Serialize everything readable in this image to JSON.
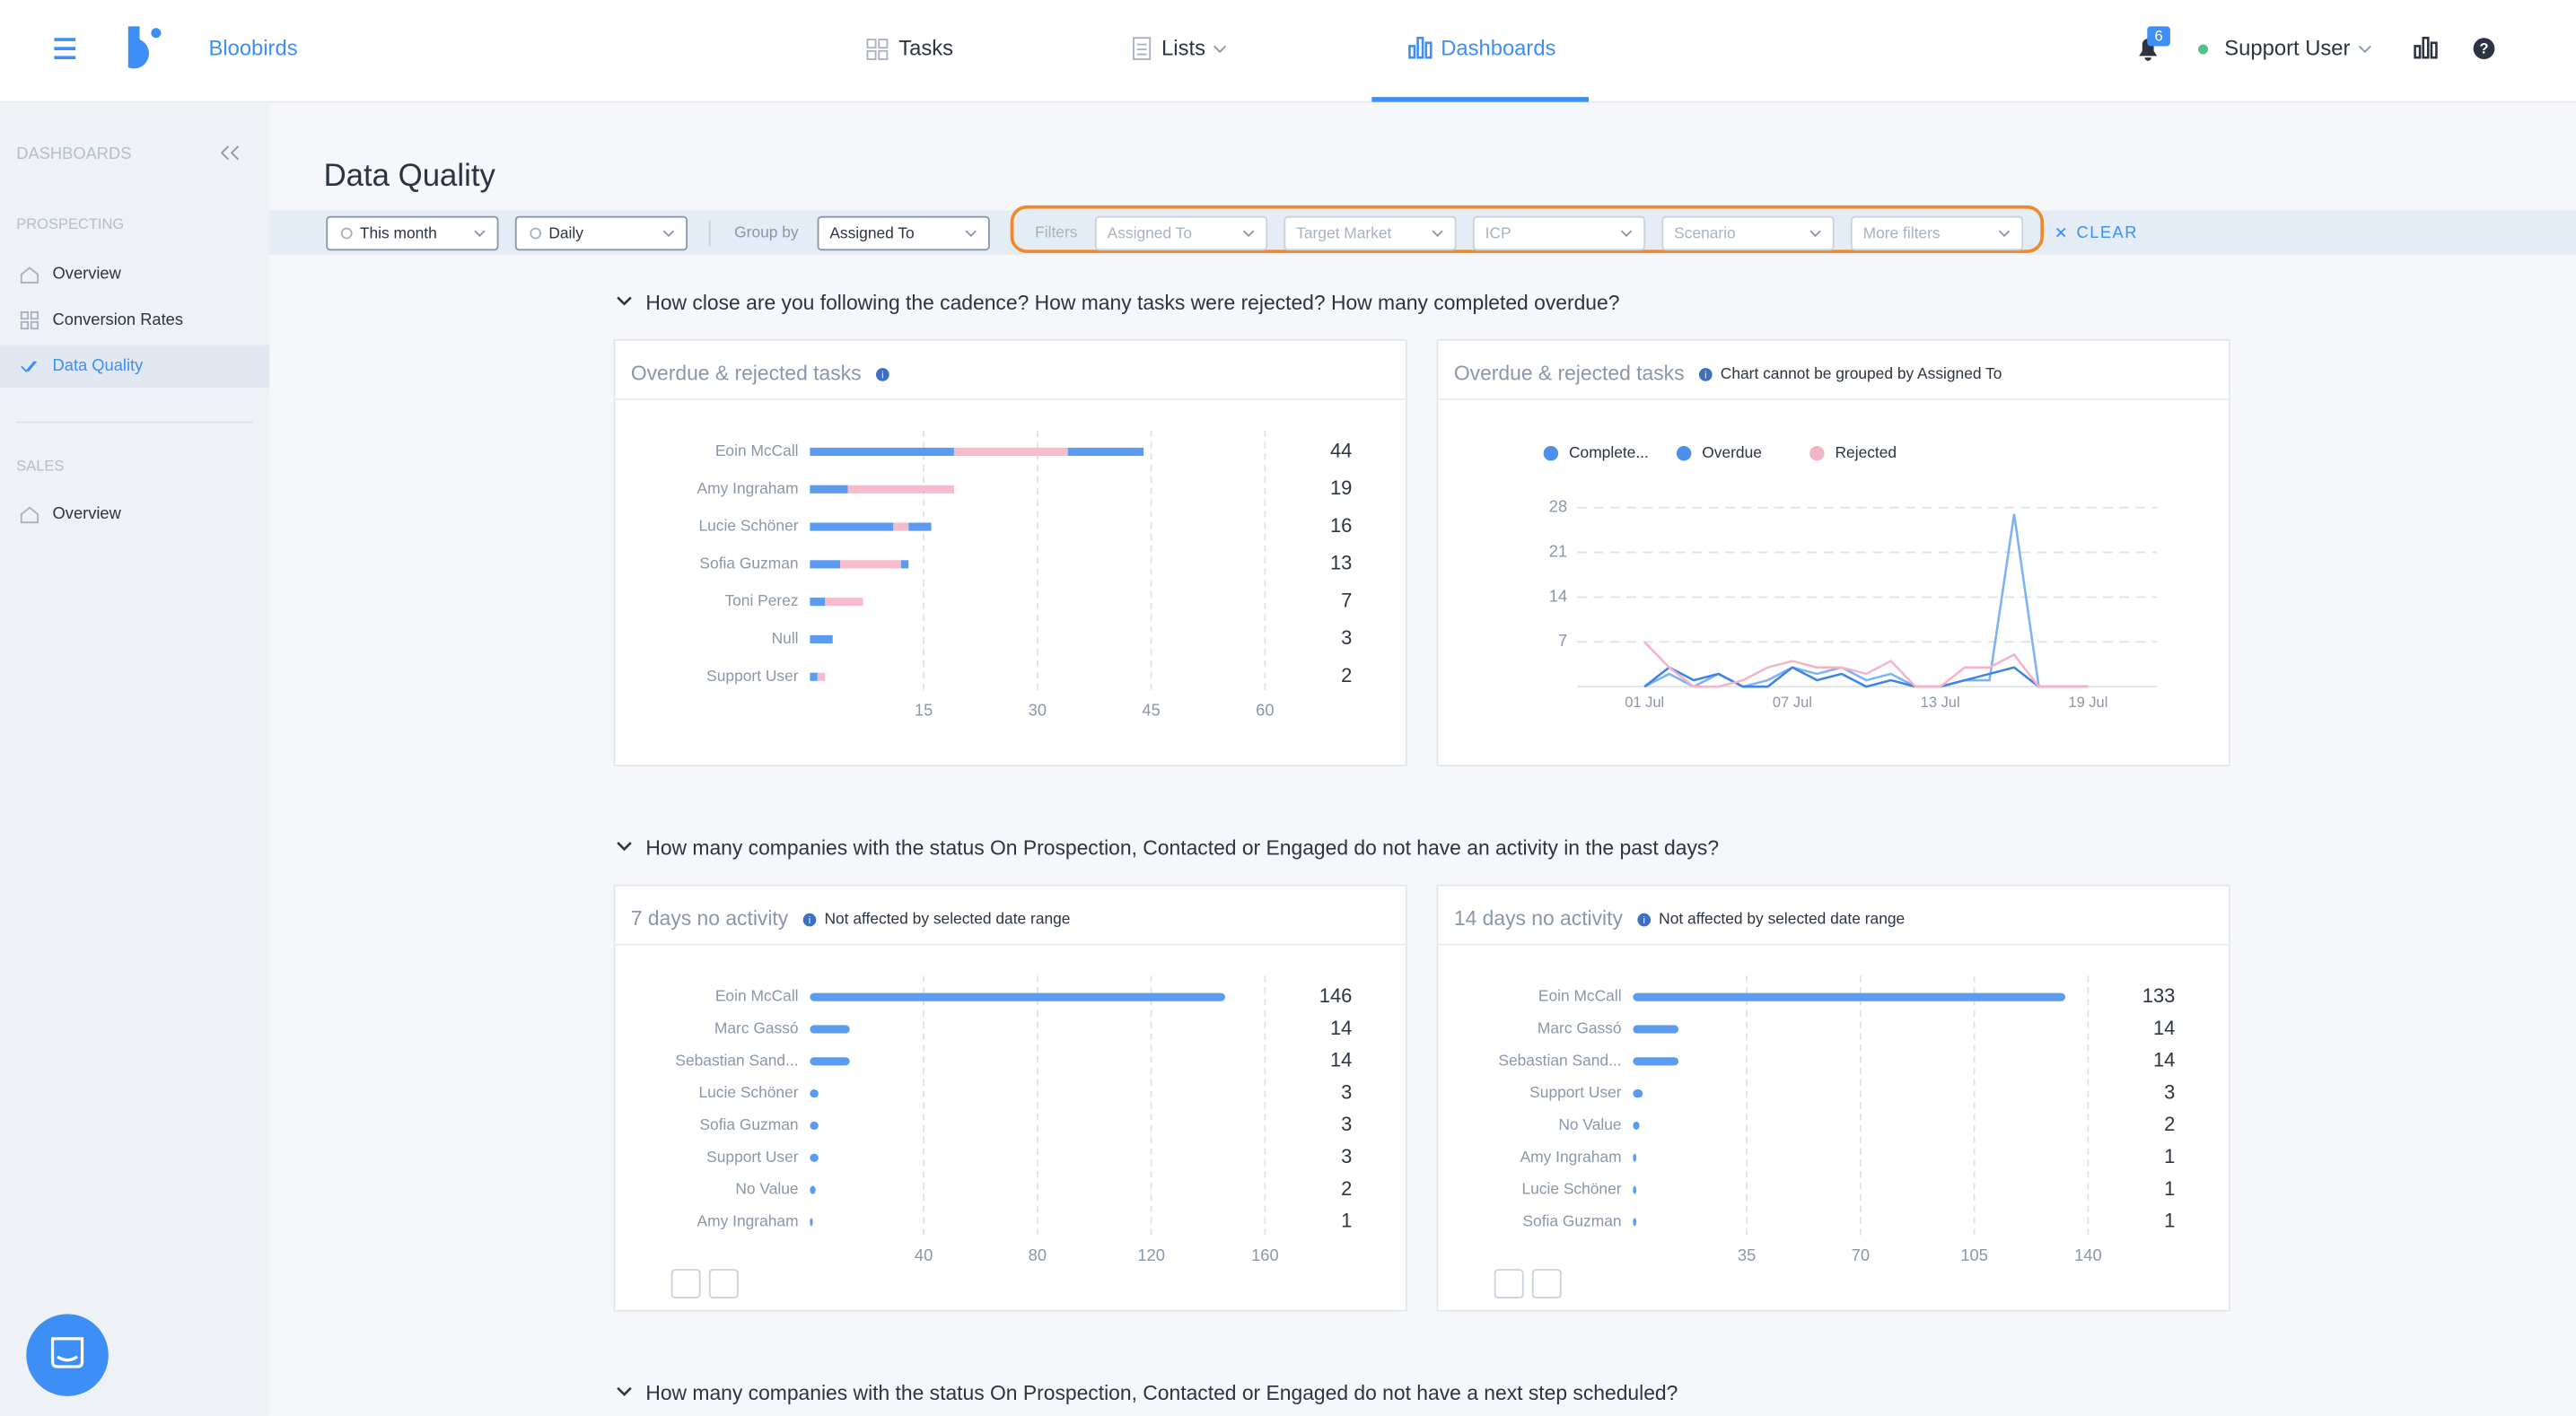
{
  "header": {
    "brand": "Bloobirds",
    "nav": [
      "Tasks",
      "Lists",
      "Dashboards"
    ],
    "notifications": 6,
    "user": "Support User"
  },
  "sidebar": {
    "title": "DASHBOARDS",
    "groups": [
      {
        "label": "PROSPECTING",
        "items": [
          "Overview",
          "Conversion Rates",
          "Data Quality"
        ]
      },
      {
        "label": "SALES",
        "items": [
          "Overview"
        ]
      }
    ]
  },
  "page": {
    "title": "Data Quality",
    "filters": {
      "date": "This month",
      "interval": "Daily",
      "group_label": "Group by",
      "group": "Assigned To",
      "filters_label": "Filters",
      "fields": [
        "Assigned To",
        "Target Market",
        "ICP",
        "Scenario",
        "More filters"
      ],
      "clear": "CLEAR"
    }
  },
  "sections": [
    {
      "question": "How close are you following the cadence? How many tasks were rejected? How many completed overdue?",
      "charts": [
        {
          "type": "stacked_hbar",
          "title": "Overdue & rejected tasks",
          "categories": [
            "Eoin McCall",
            "Amy Ingraham",
            "Lucie Schöner",
            "Sofia Guzman",
            "Toni Perez",
            "Null",
            "Support User"
          ],
          "series": [
            {
              "color": "#5b9cf0",
              "values": [
                19,
                5,
                11,
                4,
                2,
                3,
                1
              ]
            },
            {
              "color": "#f6bccb",
              "values": [
                15,
                14,
                2,
                8,
                5,
                0,
                1
              ]
            },
            {
              "color": "#5b9cf0",
              "values": [
                10,
                0,
                3,
                1,
                0,
                0,
                0
              ]
            }
          ],
          "totals": [
            44,
            19,
            16,
            13,
            7,
            3,
            2
          ],
          "xlim": [
            0,
            60
          ],
          "xticks": [
            15,
            30,
            45,
            60
          ]
        },
        {
          "type": "line",
          "title": "Overdue & rejected tasks",
          "note": "Chart cannot be grouped by Assigned To",
          "categories": [
            "01 Jul",
            null,
            null,
            null,
            null,
            null,
            "07 Jul",
            null,
            null,
            null,
            null,
            null,
            "13 Jul",
            null,
            null,
            null,
            null,
            null,
            "19 Jul"
          ],
          "series": [
            {
              "name": "Complete...",
              "color": "#7fb2f5",
              "values": [
                0,
                2,
                0,
                2,
                0,
                1,
                3,
                2,
                3,
                1,
                2,
                0,
                0,
                1,
                1,
                27,
                0,
                0,
                0
              ]
            },
            {
              "name": "Overdue",
              "color": "#3f83e6",
              "values": [
                0,
                3,
                1,
                2,
                0,
                0,
                3,
                1,
                2,
                0,
                1,
                0,
                0,
                1,
                2,
                3,
                0,
                0,
                0
              ]
            },
            {
              "name": "Rejected",
              "color": "#f4b4c4",
              "values": [
                7,
                3,
                0,
                0,
                1,
                3,
                4,
                3,
                3,
                2,
                4,
                0,
                0,
                3,
                3,
                5,
                0,
                0,
                0
              ]
            }
          ],
          "ylim": [
            0,
            28
          ],
          "yticks": [
            7,
            14,
            21,
            28
          ]
        }
      ]
    },
    {
      "question": "How many companies with the status On Prospection, Contacted or Engaged do not have an activity in the past days?",
      "charts": [
        {
          "type": "hbar",
          "title": "7 days no activity",
          "note": "Not affected by selected date range",
          "categories": [
            "Eoin McCall",
            "Marc Gassó",
            "Sebastian Sand...",
            "Lucie Schöner",
            "Sofia Guzman",
            "Support User",
            "No Value",
            "Amy Ingraham"
          ],
          "values": [
            146,
            14,
            14,
            3,
            3,
            3,
            2,
            1
          ],
          "color": "#5b9cf0",
          "xlim": [
            0,
            160
          ],
          "xticks": [
            40,
            80,
            120,
            160
          ]
        },
        {
          "type": "hbar",
          "title": "14 days no activity",
          "note": "Not affected by selected date range",
          "categories": [
            "Eoin McCall",
            "Marc Gassó",
            "Sebastian Sand...",
            "Support User",
            "No Value",
            "Amy Ingraham",
            "Lucie Schöner",
            "Sofia Guzman"
          ],
          "values": [
            133,
            14,
            14,
            3,
            2,
            1,
            1,
            1
          ],
          "color": "#5b9cf0",
          "xlim": [
            0,
            140
          ],
          "xticks": [
            35,
            70,
            105,
            140
          ]
        }
      ]
    },
    {
      "question": "How many companies with the status On Prospection, Contacted or Engaged do not have a next step scheduled?"
    }
  ]
}
